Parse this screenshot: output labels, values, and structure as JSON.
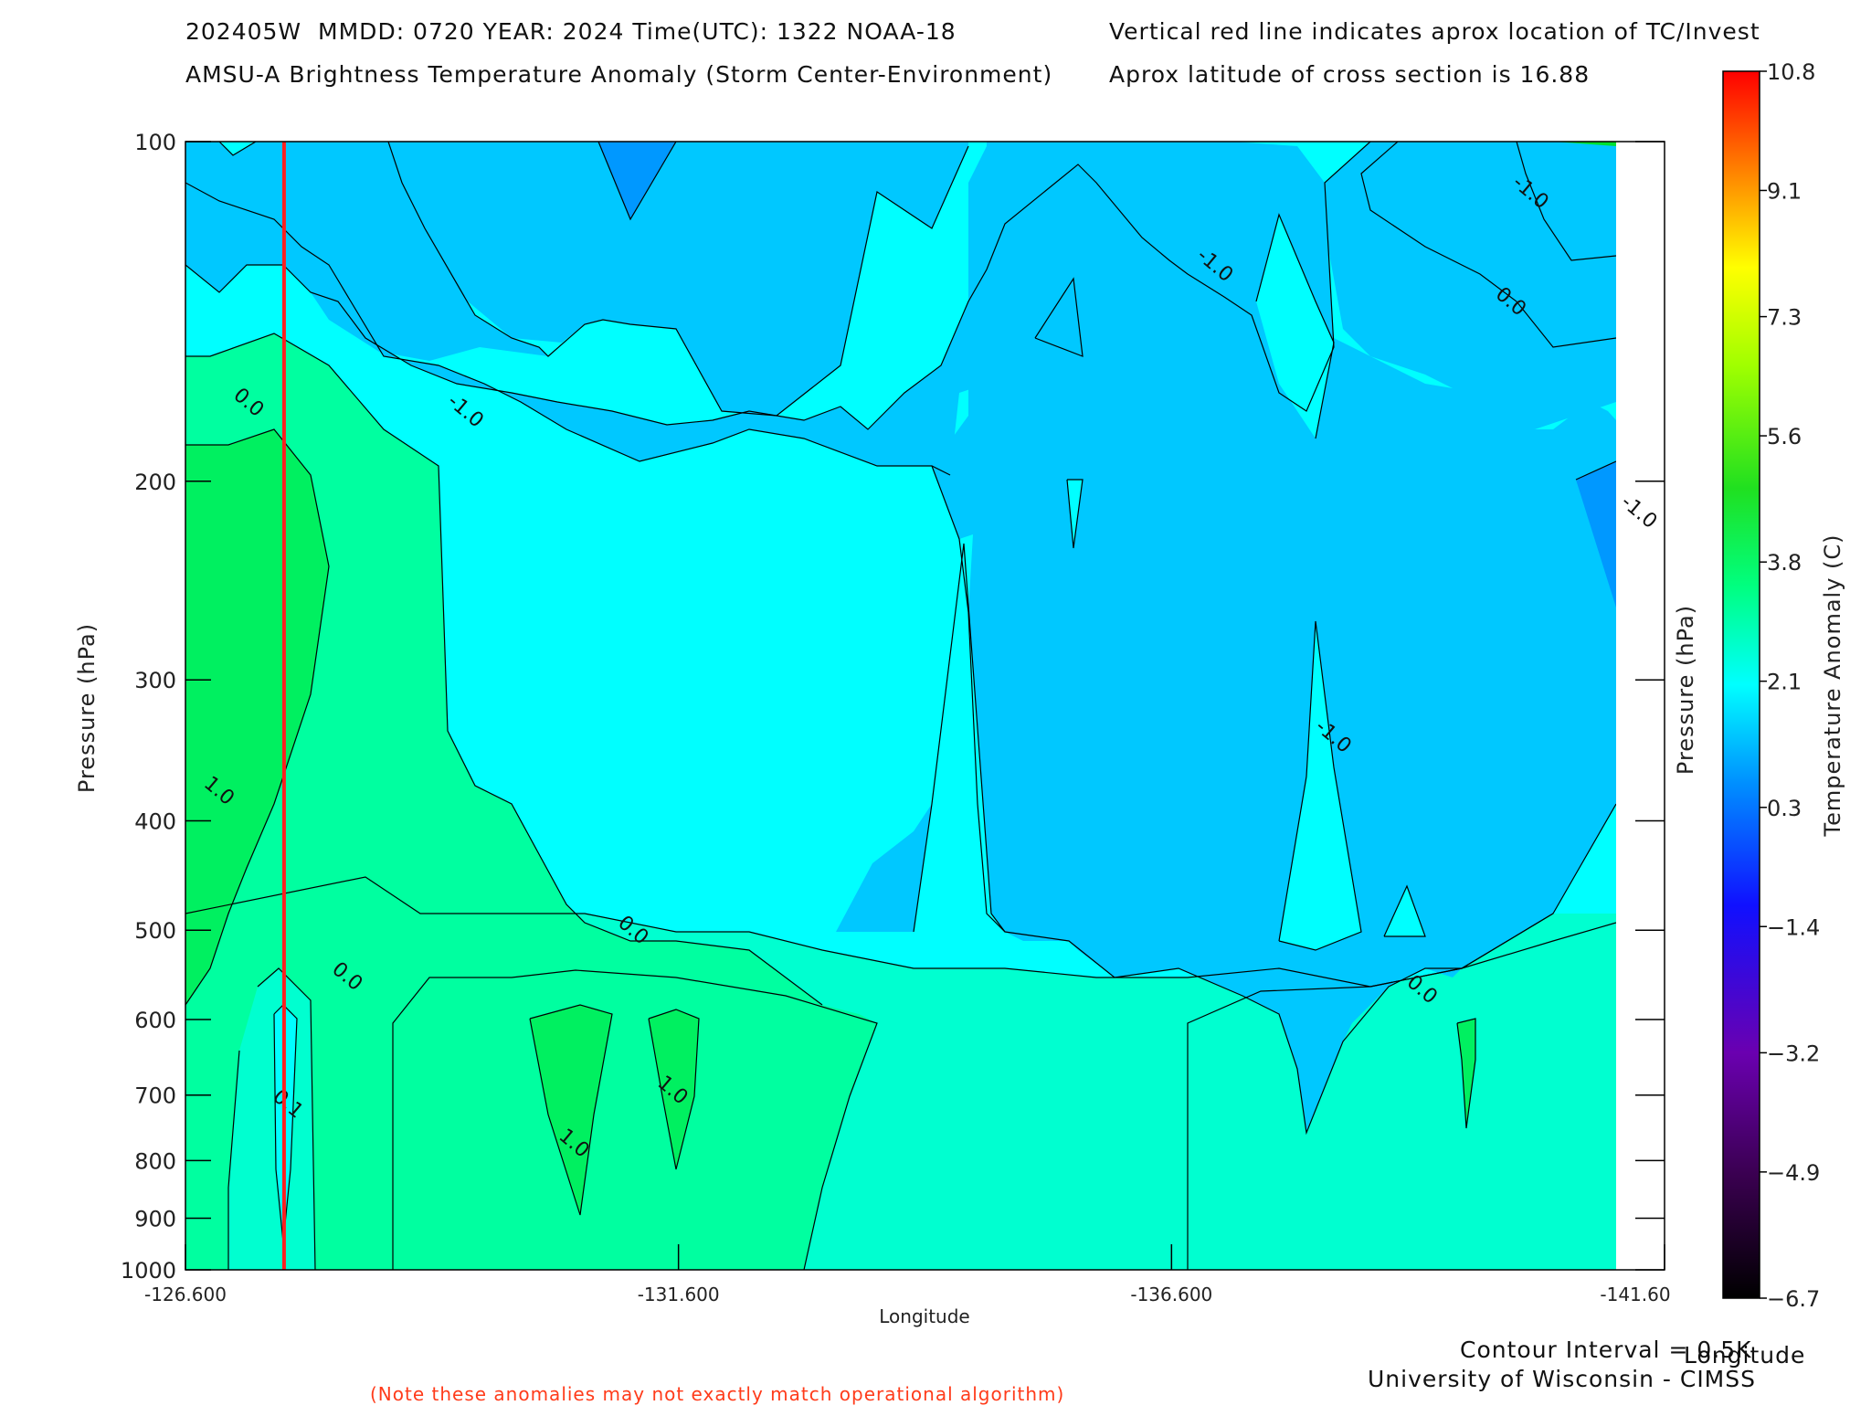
{
  "header": {
    "line1_left": "202405W  MMDD: 0720 YEAR: 2024 Time(UTC): 1322 NOAA-18",
    "line2_left": "AMSU-A Brightness Temperature Anomaly (Storm Center-Environment)",
    "line1_right": "Vertical red line indicates aprox location of TC/Invest",
    "line2_right": "Aprox latitude of cross section is 16.88"
  },
  "footer": {
    "contour_interval": "Contour Interval = 0.5K",
    "institution": "University of Wisconsin - CIMSS",
    "note": "(Note these anomalies may not exactly match operational algorithm)",
    "colorbar_axis_title": "Longitude"
  },
  "colors": {
    "tc_line": "#ff2020",
    "note_text": "#ff3b1a",
    "levels": {
      "-2.0": "#0070ff",
      "-1.5": "#0098ff",
      "-1.0": "#00c8ff",
      "-0.5": "#00ffff",
      "0.0": "#00ffd0",
      "0.5": "#00ffa0",
      "1.0": "#00ff80",
      "1.5": "#00ff60",
      "2.0": "#00f040"
    }
  },
  "chart_data": {
    "type": "contour",
    "xlabel": "Longitude",
    "ylabel_left": "Pressure (hPa)",
    "ylabel_right": "Pressure (hPa)",
    "x_ticks": [
      "-126.600",
      "-131.600",
      "-136.600",
      "-141.60"
    ],
    "x_tick_values": [
      -126.6,
      -131.6,
      -136.6,
      -141.6
    ],
    "xlim": [
      -126.6,
      -141.6
    ],
    "y_ticks": [
      "100",
      "200",
      "300",
      "400",
      "500",
      "600",
      "700",
      "800",
      "900",
      "1000"
    ],
    "y_tick_values": [
      100,
      200,
      300,
      400,
      500,
      600,
      700,
      800,
      900,
      1000
    ],
    "ylim": [
      100,
      1000
    ],
    "y_scale": "log (pressure)",
    "tc_longitude": -127.6,
    "contour_labels": [
      {
        "text": "0.0",
        "lon": -127.2,
        "p": 172
      },
      {
        "text": "-1.0",
        "lon": -129.4,
        "p": 175
      },
      {
        "text": "-1.0",
        "lon": -140.2,
        "p": 112
      },
      {
        "text": "0.0",
        "lon": -140.0,
        "p": 140
      },
      {
        "text": "-1.0",
        "lon": -137.0,
        "p": 130
      },
      {
        "text": "-1.0",
        "lon": -141.3,
        "p": 215
      },
      {
        "text": "-1.0",
        "lon": -138.2,
        "p": 340
      },
      {
        "text": "1.0",
        "lon": -126.9,
        "p": 380
      },
      {
        "text": "0.0",
        "lon": -131.1,
        "p": 505
      },
      {
        "text": "0.0",
        "lon": -128.2,
        "p": 555
      },
      {
        "text": "0.0",
        "lon": -139.1,
        "p": 570
      },
      {
        "text": "0.1",
        "lon": -127.6,
        "p": 720
      },
      {
        "text": "1.0",
        "lon": -130.5,
        "p": 780
      },
      {
        "text": "1.0",
        "lon": -131.5,
        "p": 700
      }
    ],
    "colorbar": {
      "title": "Temperature Anomaly (C)",
      "ticks": [
        "10.8",
        "9.1",
        "7.3",
        "5.6",
        "3.8",
        "2.1",
        "0.3",
        "-1.4",
        "-3.2",
        "-4.9",
        "-6.7"
      ],
      "tick_values": [
        10.8,
        9.1,
        7.3,
        5.6,
        3.8,
        2.1,
        0.3,
        -1.4,
        -3.2,
        -4.9,
        -6.7
      ],
      "range": [
        -6.7,
        10.8
      ]
    }
  }
}
